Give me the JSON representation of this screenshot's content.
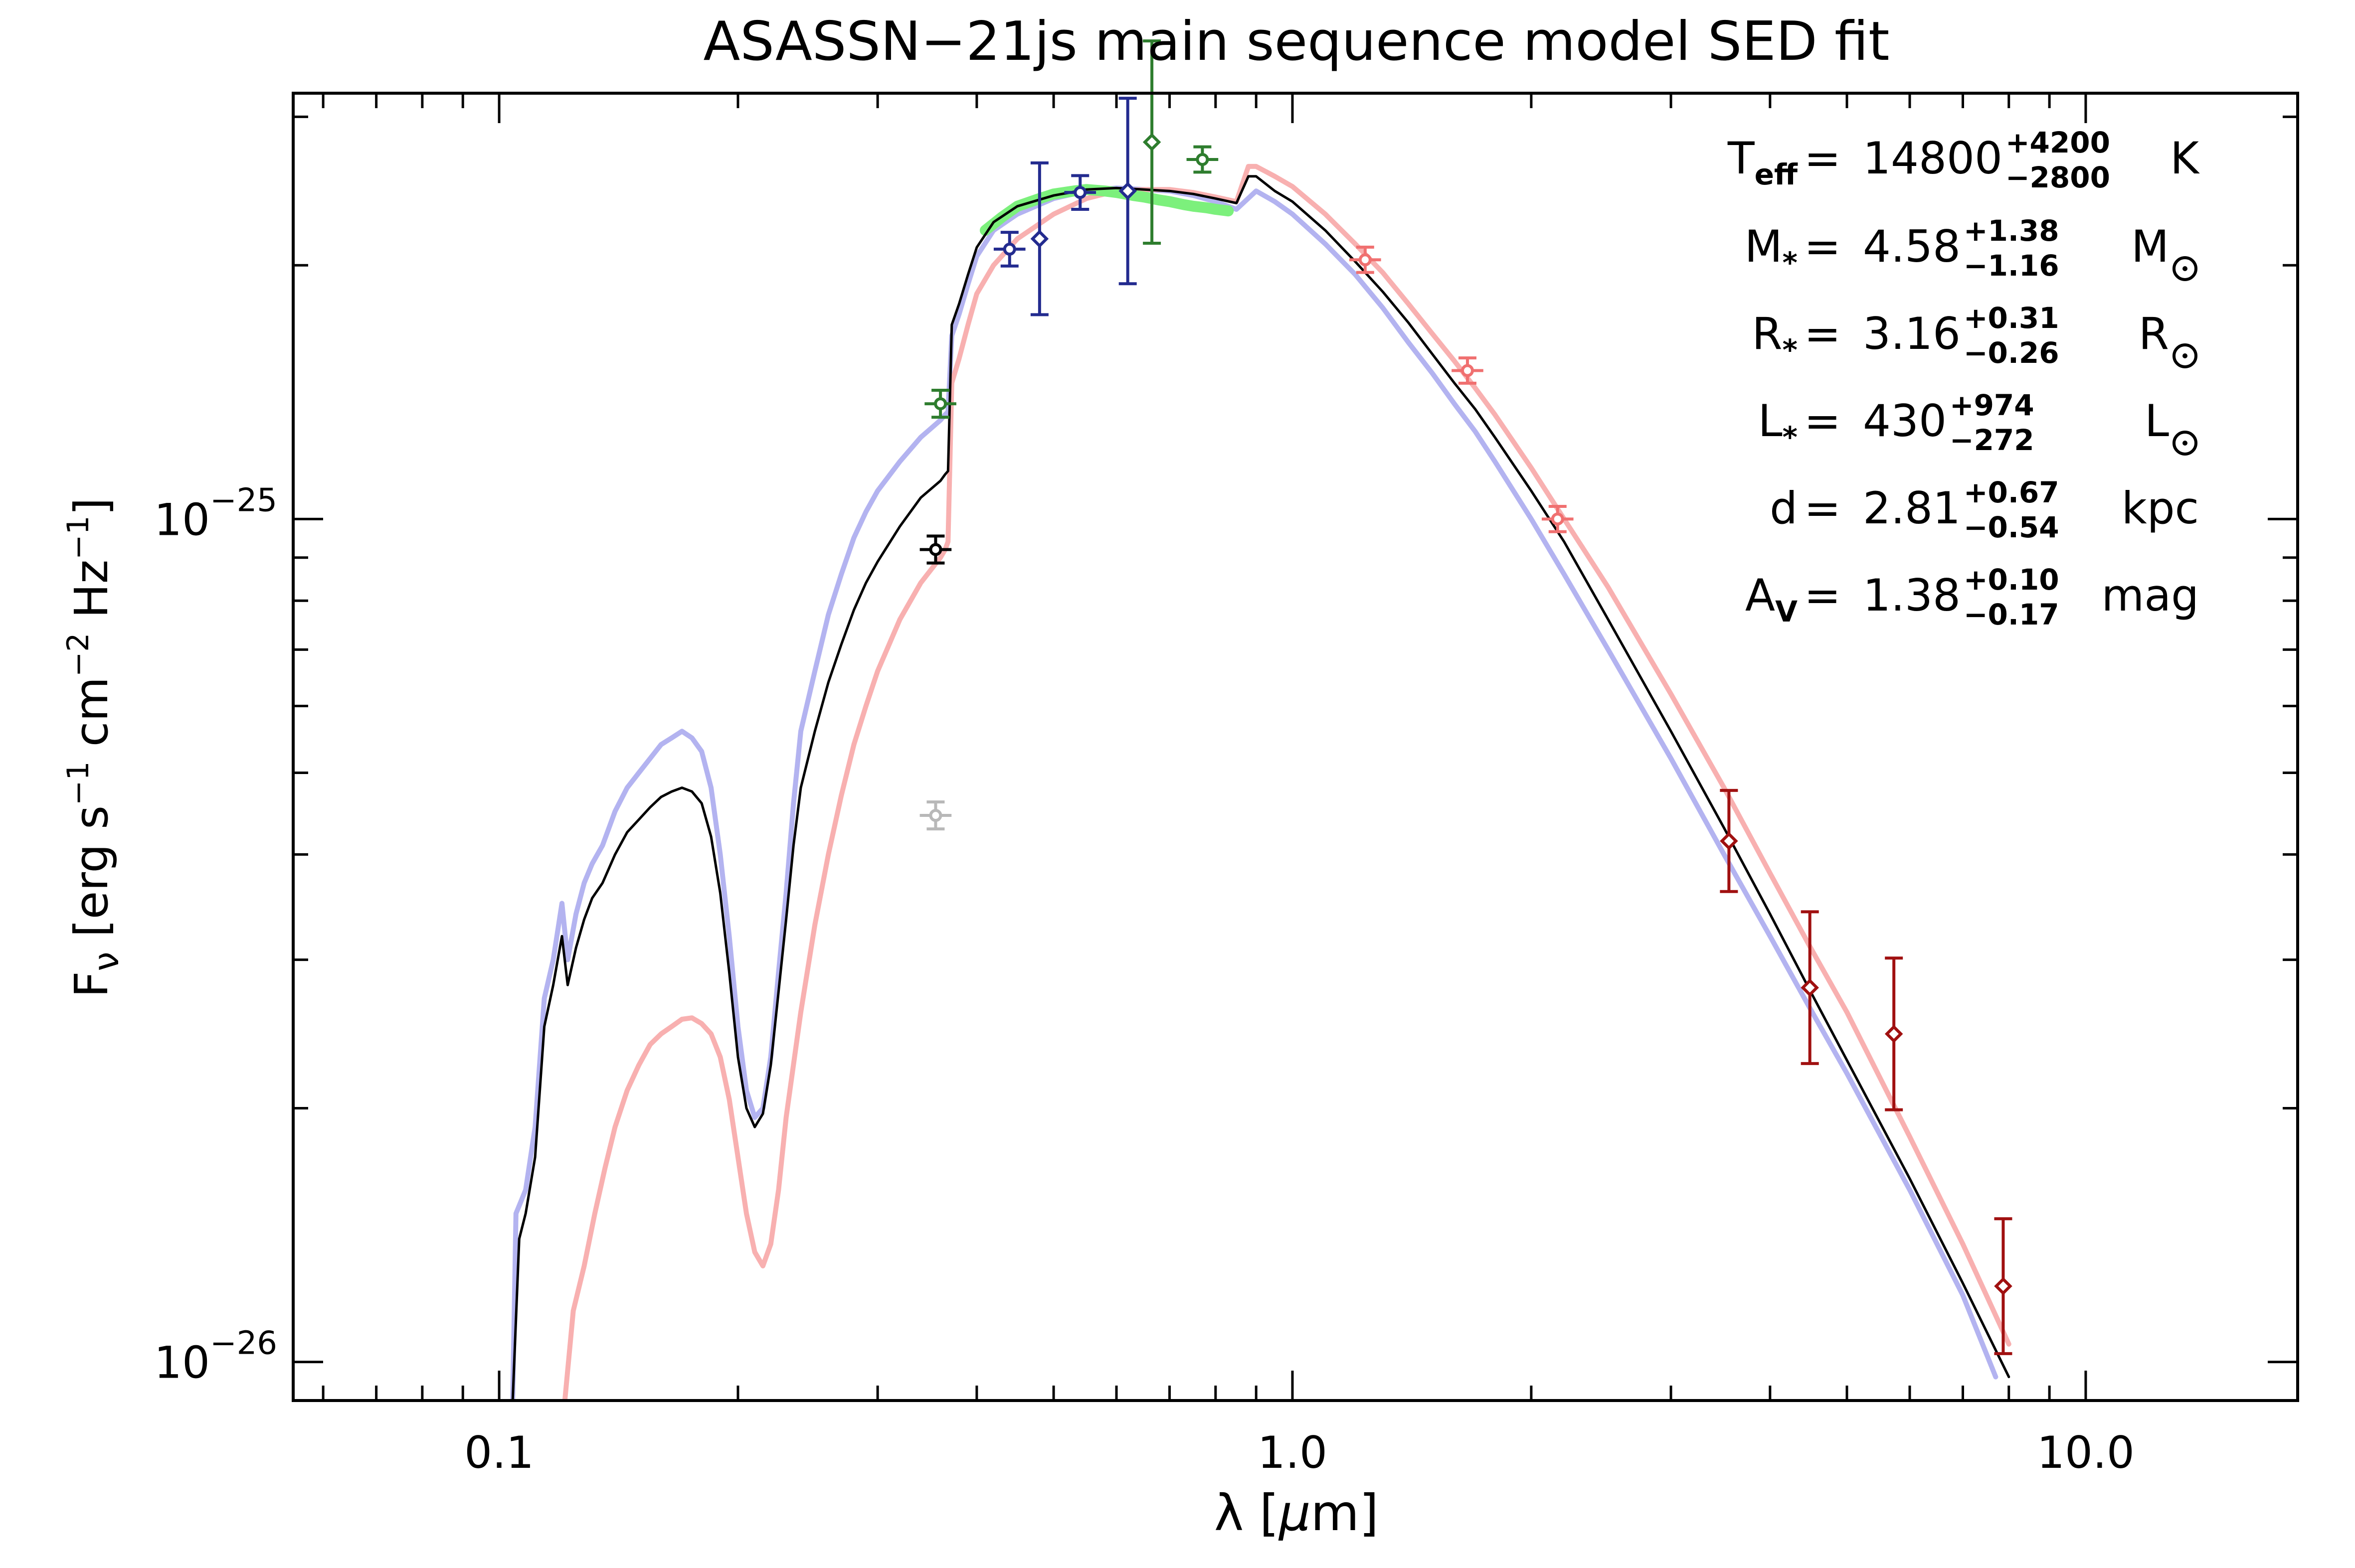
{
  "chart_data": {
    "type": "line",
    "title": "ASASSN−21js main sequence model SED fit",
    "xlabel": {
      "pre": "λ [",
      "mu": "μ",
      "post": "m]"
    },
    "ylabel": {
      "F": "F",
      "nu": "ν",
      "units_a": " [erg s",
      "exp1": "−1",
      "units_b": " cm",
      "exp2": "−2",
      "units_c": " Hz",
      "exp3": "−1",
      "close": "]"
    },
    "xscale": "log",
    "yscale": "log",
    "xlim": [
      0.055,
      18.5
    ],
    "ylim": [
      9e-27,
      3.2e-25
    ],
    "xticks": [
      {
        "value": 0.1,
        "label": "0.1"
      },
      {
        "value": 1.0,
        "label": "1.0"
      },
      {
        "value": 10.0,
        "label": "10.0"
      }
    ],
    "yticks": [
      {
        "value": 1e-25,
        "base": "10",
        "exp": "−25"
      },
      {
        "value": 1e-26,
        "base": "10",
        "exp": "−26"
      }
    ],
    "grid": false,
    "params": [
      {
        "sym": "T",
        "sub": "eff",
        "eq": "=",
        "val": "14800",
        "up": "+4200",
        "lo": "−2800",
        "unit": "K",
        "sun": false
      },
      {
        "sym": "M",
        "sub": "*",
        "eq": "=",
        "val": "4.58",
        "up": "+1.38",
        "lo": "−1.16",
        "unit": "M",
        "sun": true
      },
      {
        "sym": "R",
        "sub": "*",
        "eq": "=",
        "val": "3.16",
        "up": "+0.31",
        "lo": "−0.26",
        "unit": "R",
        "sun": true
      },
      {
        "sym": "L",
        "sub": "*",
        "eq": "=",
        "val": "430",
        "up": "+974",
        "lo": "−272",
        "unit": "L",
        "sun": true
      },
      {
        "sym": "d",
        "sub": "",
        "eq": "=",
        "val": "2.81",
        "up": "+0.67",
        "lo": "−0.54",
        "unit": "kpc",
        "sun": false
      },
      {
        "sym": "A",
        "sub": "V",
        "eq": "=",
        "val": "1.38",
        "up": "+0.10",
        "lo": "−0.17",
        "unit": "mag",
        "sun": false
      }
    ],
    "series": [
      {
        "color": "#b3b3f0",
        "width": 10,
        "x": [
          0.104,
          0.105,
          0.108,
          0.111,
          0.114,
          0.117,
          0.12,
          0.122,
          0.125,
          0.128,
          0.131,
          0.135,
          0.14,
          0.145,
          0.15,
          0.155,
          0.16,
          0.165,
          0.17,
          0.175,
          0.18,
          0.185,
          0.19,
          0.195,
          0.2,
          0.205,
          0.21,
          0.215,
          0.22,
          0.225,
          0.23,
          0.235,
          0.24,
          0.25,
          0.26,
          0.27,
          0.28,
          0.29,
          0.3,
          0.32,
          0.34,
          0.36,
          0.365,
          0.368,
          0.372,
          0.38,
          0.39,
          0.4,
          0.42,
          0.45,
          0.5,
          0.55,
          0.6,
          0.65,
          0.7,
          0.75,
          0.8,
          0.85,
          0.9,
          0.95,
          1.0,
          1.1,
          1.2,
          1.3,
          1.4,
          1.5,
          1.6,
          1.7,
          1.8,
          2.0,
          2.2,
          2.5,
          3.0,
          3.5,
          4.0,
          4.5,
          5.0,
          6.0,
          7.0,
          7.7
        ],
        "y": [
          9e-27,
          1.5e-26,
          1.6e-26,
          1.9e-26,
          2.7e-26,
          3e-26,
          3.5e-26,
          3e-26,
          3.4e-26,
          3.7e-26,
          3.9e-26,
          4.1e-26,
          4.5e-26,
          4.8e-26,
          5e-26,
          5.2e-26,
          5.4e-26,
          5.5e-26,
          5.6e-26,
          5.5e-26,
          5.3e-26,
          4.8e-26,
          4e-26,
          3.2e-26,
          2.5e-26,
          2.1e-26,
          1.95e-26,
          2e-26,
          2.3e-26,
          2.9e-26,
          3.6e-26,
          4.6e-26,
          5.6e-26,
          6.6e-26,
          7.7e-26,
          8.6e-26,
          9.5e-26,
          1.02e-25,
          1.08e-25,
          1.17e-25,
          1.25e-25,
          1.31e-25,
          1.33e-25,
          1.34e-25,
          1.65e-25,
          1.75e-25,
          1.9e-25,
          2.05e-25,
          2.2e-25,
          2.3e-25,
          2.4e-25,
          2.45e-25,
          2.47e-25,
          2.46e-25,
          2.45e-25,
          2.42e-25,
          2.38e-25,
          2.33e-25,
          2.45e-25,
          2.38e-25,
          2.3e-25,
          2.12e-25,
          1.95e-25,
          1.78e-25,
          1.62e-25,
          1.49e-25,
          1.37e-25,
          1.27e-25,
          1.17e-25,
          1e-25,
          8.6e-26,
          7e-26,
          5.2e-26,
          4e-26,
          3.2e-26,
          2.62e-26,
          2.2e-26,
          1.6e-26,
          1.2e-26,
          9.6e-27
        ]
      },
      {
        "color": "#f8b0b0",
        "width": 10,
        "x": [
          0.121,
          0.124,
          0.128,
          0.132,
          0.136,
          0.14,
          0.145,
          0.15,
          0.155,
          0.16,
          0.165,
          0.17,
          0.175,
          0.18,
          0.185,
          0.19,
          0.195,
          0.2,
          0.205,
          0.21,
          0.215,
          0.22,
          0.225,
          0.23,
          0.24,
          0.25,
          0.26,
          0.27,
          0.28,
          0.29,
          0.3,
          0.32,
          0.34,
          0.36,
          0.365,
          0.368,
          0.372,
          0.38,
          0.39,
          0.4,
          0.42,
          0.45,
          0.5,
          0.55,
          0.6,
          0.65,
          0.7,
          0.75,
          0.8,
          0.85,
          0.88,
          0.9,
          0.95,
          1.0,
          1.1,
          1.2,
          1.3,
          1.4,
          1.5,
          1.6,
          1.7,
          1.8,
          2.0,
          2.2,
          2.5,
          3.0,
          3.5,
          4.0,
          4.5,
          5.0,
          6.0,
          7.0,
          8.0
        ],
        "y": [
          9e-27,
          1.15e-26,
          1.3e-26,
          1.5e-26,
          1.7e-26,
          1.9e-26,
          2.1e-26,
          2.25e-26,
          2.38e-26,
          2.45e-26,
          2.5e-26,
          2.55e-26,
          2.56e-26,
          2.52e-26,
          2.45e-26,
          2.3e-26,
          2.05e-26,
          1.75e-26,
          1.5e-26,
          1.35e-26,
          1.3e-26,
          1.38e-26,
          1.6e-26,
          1.95e-26,
          2.6e-26,
          3.3e-26,
          4e-26,
          4.7e-26,
          5.4e-26,
          6e-26,
          6.6e-26,
          7.6e-26,
          8.4e-26,
          9e-26,
          9.2e-26,
          9.4e-26,
          1.45e-25,
          1.55e-25,
          1.7e-25,
          1.85e-25,
          2e-25,
          2.15e-25,
          2.3e-25,
          2.4e-25,
          2.45e-25,
          2.46e-25,
          2.46e-25,
          2.44e-25,
          2.41e-25,
          2.38e-25,
          2.62e-25,
          2.62e-25,
          2.55e-25,
          2.48e-25,
          2.3e-25,
          2.12e-25,
          1.96e-25,
          1.8e-25,
          1.66e-25,
          1.54e-25,
          1.43e-25,
          1.33e-25,
          1.15e-25,
          1e-25,
          8.3e-26,
          6.2e-26,
          4.8e-26,
          3.8e-26,
          3.1e-26,
          2.6e-26,
          1.85e-26,
          1.38e-26,
          1.05e-26
        ]
      },
      {
        "color": "#7cf07c",
        "width": 22,
        "x": [
          0.41,
          0.43,
          0.45,
          0.48,
          0.5,
          0.53,
          0.55,
          0.58,
          0.6,
          0.63,
          0.65,
          0.68,
          0.7,
          0.73,
          0.75,
          0.78,
          0.8,
          0.83
        ],
        "y": [
          2.2e-25,
          2.28e-25,
          2.35e-25,
          2.4e-25,
          2.43e-25,
          2.45e-25,
          2.46e-25,
          2.45e-25,
          2.44e-25,
          2.42e-25,
          2.41e-25,
          2.39e-25,
          2.38e-25,
          2.36e-25,
          2.35e-25,
          2.34e-25,
          2.33e-25,
          2.32e-25
        ]
      },
      {
        "color": "#000000",
        "width": 5,
        "x": [
          0.104,
          0.106,
          0.108,
          0.111,
          0.114,
          0.117,
          0.12,
          0.122,
          0.125,
          0.128,
          0.131,
          0.135,
          0.14,
          0.145,
          0.15,
          0.155,
          0.16,
          0.165,
          0.17,
          0.175,
          0.18,
          0.185,
          0.19,
          0.195,
          0.2,
          0.205,
          0.21,
          0.215,
          0.22,
          0.225,
          0.23,
          0.235,
          0.24,
          0.25,
          0.26,
          0.27,
          0.28,
          0.29,
          0.3,
          0.32,
          0.34,
          0.36,
          0.365,
          0.368,
          0.372,
          0.38,
          0.39,
          0.4,
          0.42,
          0.45,
          0.5,
          0.55,
          0.6,
          0.65,
          0.7,
          0.75,
          0.8,
          0.85,
          0.88,
          0.9,
          0.95,
          1.0,
          1.1,
          1.2,
          1.3,
          1.4,
          1.5,
          1.6,
          1.7,
          1.8,
          2.0,
          2.2,
          2.5,
          3.0,
          3.5,
          4.0,
          4.5,
          5.0,
          6.0,
          7.0,
          8.0
        ],
        "y": [
          9e-27,
          1.4e-26,
          1.5e-26,
          1.75e-26,
          2.5e-26,
          2.8e-26,
          3.2e-26,
          2.8e-26,
          3.1e-26,
          3.35e-26,
          3.55e-26,
          3.7e-26,
          4e-26,
          4.25e-26,
          4.4e-26,
          4.55e-26,
          4.68e-26,
          4.75e-26,
          4.8e-26,
          4.75e-26,
          4.6e-26,
          4.2e-26,
          3.6e-26,
          2.9e-26,
          2.3e-26,
          2e-26,
          1.9e-26,
          1.97e-26,
          2.25e-26,
          2.75e-26,
          3.35e-26,
          4.1e-26,
          4.8e-26,
          5.6e-26,
          6.4e-26,
          7.1e-26,
          7.8e-26,
          8.4e-26,
          8.9e-26,
          9.8e-26,
          1.06e-25,
          1.11e-25,
          1.13e-25,
          1.14e-25,
          1.7e-25,
          1.8e-25,
          1.95e-25,
          2.1e-25,
          2.25e-25,
          2.35e-25,
          2.42e-25,
          2.46e-25,
          2.47e-25,
          2.46e-25,
          2.45e-25,
          2.43e-25,
          2.4e-25,
          2.37e-25,
          2.55e-25,
          2.55e-25,
          2.45e-25,
          2.38e-25,
          2.2e-25,
          2.02e-25,
          1.86e-25,
          1.71e-25,
          1.57e-25,
          1.45e-25,
          1.35e-25,
          1.25e-25,
          1.08e-25,
          9.4e-26,
          7.6e-26,
          5.6e-26,
          4.3e-26,
          3.4e-26,
          2.75e-26,
          2.28e-26,
          1.65e-26,
          1.24e-26,
          9.6e-27
        ]
      }
    ],
    "points": [
      {
        "x": 0.355,
        "y": 9.2e-26,
        "yerr": 0.016,
        "xerr": 0.04,
        "color": "#000000",
        "marker": "circle"
      },
      {
        "x": 0.355,
        "y": 4.45e-26,
        "yerr": 0.016,
        "xerr": 0.04,
        "color": "#b8b8b8",
        "marker": "circle"
      },
      {
        "x": 0.36,
        "y": 1.37e-25,
        "yerr": 0.016,
        "xerr": 0.04,
        "color": "#2e7d2e",
        "marker": "circle"
      },
      {
        "x": 0.44,
        "y": 2.09e-25,
        "yerr": 0.02,
        "xerr": 0.04,
        "color": "#232b8f",
        "marker": "circle"
      },
      {
        "x": 0.48,
        "y": 2.15e-25,
        "yerr": 0.09,
        "xerr": 0.0,
        "color": "#232b8f",
        "marker": "diamond"
      },
      {
        "x": 0.54,
        "y": 2.44e-25,
        "yerr": 0.02,
        "xerr": 0.04,
        "color": "#232b8f",
        "marker": "circle"
      },
      {
        "x": 0.62,
        "y": 2.45e-25,
        "yerr": 0.11,
        "xerr": 0.0,
        "color": "#232b8f",
        "marker": "diamond"
      },
      {
        "x": 0.665,
        "y": 2.8e-25,
        "yerr": 0.12,
        "xerr": 0.0,
        "color": "#2e7d2e",
        "marker": "diamond"
      },
      {
        "x": 0.77,
        "y": 2.67e-25,
        "yerr": 0.015,
        "xerr": 0.04,
        "color": "#2e7d2e",
        "marker": "circle"
      },
      {
        "x": 1.235,
        "y": 2.03e-25,
        "yerr": 0.015,
        "xerr": 0.04,
        "color": "#f07070",
        "marker": "circle"
      },
      {
        "x": 1.662,
        "y": 1.5e-25,
        "yerr": 0.015,
        "xerr": 0.04,
        "color": "#f07070",
        "marker": "circle"
      },
      {
        "x": 2.159,
        "y": 1e-25,
        "yerr": 0.015,
        "xerr": 0.04,
        "color": "#f07070",
        "marker": "circle"
      },
      {
        "x": 3.55,
        "y": 4.15e-26,
        "yerr": 0.06,
        "xerr": 0.0,
        "color": "#a01010",
        "marker": "diamond"
      },
      {
        "x": 4.49,
        "y": 2.78e-26,
        "yerr": 0.09,
        "xerr": 0.0,
        "color": "#a01010",
        "marker": "diamond"
      },
      {
        "x": 5.73,
        "y": 2.45e-26,
        "yerr": 0.09,
        "xerr": 0.0,
        "color": "#a01010",
        "marker": "diamond"
      },
      {
        "x": 7.87,
        "y": 1.23e-26,
        "yerr": 0.08,
        "xerr": 0.0,
        "color": "#a01010",
        "marker": "diamond"
      }
    ]
  }
}
